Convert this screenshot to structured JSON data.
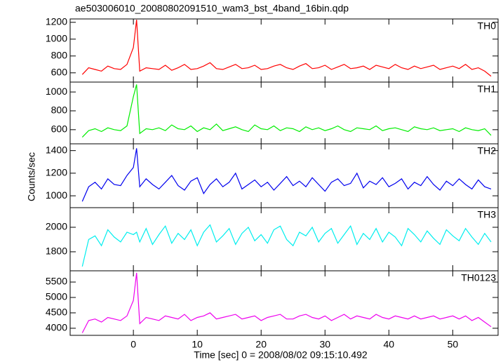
{
  "chart_data": [
    {
      "type": "line",
      "title": "ae503006010_20080802091510_wam3_bst_4band_16bin.qdp",
      "x": [
        -8,
        -7,
        -6,
        -5,
        -4,
        -3,
        -2,
        -1,
        0,
        0.5,
        1,
        2,
        3,
        4,
        5,
        6,
        7,
        8,
        9,
        10,
        11,
        12,
        13,
        14,
        15,
        16,
        17,
        18,
        19,
        20,
        21,
        22,
        23,
        24,
        25,
        26,
        27,
        28,
        29,
        30,
        31,
        32,
        33,
        34,
        35,
        36,
        37,
        38,
        39,
        40,
        41,
        42,
        43,
        44,
        45,
        46,
        47,
        48,
        49,
        50,
        51,
        52,
        53,
        54,
        55,
        56
      ],
      "xlim": [
        -9.9,
        57.1
      ],
      "ylim": [
        490,
        1240
      ],
      "yticks": [
        600,
        800,
        1000,
        1200
      ],
      "series": [
        {
          "name": "TH0",
          "color": "#ff0000",
          "values": [
            580,
            660,
            640,
            620,
            680,
            650,
            640,
            700,
            900,
            1230,
            620,
            660,
            650,
            640,
            690,
            630,
            660,
            700,
            640,
            650,
            680,
            720,
            650,
            640,
            670,
            700,
            650,
            660,
            690,
            640,
            650,
            680,
            700,
            660,
            640,
            680,
            710,
            650,
            660,
            690,
            640,
            670,
            700,
            650,
            660,
            680,
            640,
            690,
            670,
            650,
            700,
            660,
            640,
            680,
            650,
            670,
            690,
            640,
            660,
            680,
            650,
            700,
            640,
            660,
            620,
            560
          ]
        }
      ]
    },
    {
      "type": "line",
      "x": [
        -8,
        -7,
        -6,
        -5,
        -4,
        -3,
        -2,
        -1,
        0,
        0.5,
        1,
        2,
        3,
        4,
        5,
        6,
        7,
        8,
        9,
        10,
        11,
        12,
        13,
        14,
        15,
        16,
        17,
        18,
        19,
        20,
        21,
        22,
        23,
        24,
        25,
        26,
        27,
        28,
        29,
        30,
        31,
        32,
        33,
        34,
        35,
        36,
        37,
        38,
        39,
        40,
        41,
        42,
        43,
        44,
        45,
        46,
        47,
        48,
        49,
        50,
        51,
        52,
        53,
        54,
        55,
        56
      ],
      "xlim": [
        -9.9,
        57.1
      ],
      "ylim": [
        450,
        1105
      ],
      "yticks": [
        600,
        800,
        1000
      ],
      "series": [
        {
          "name": "TH1",
          "color": "#00ee00",
          "values": [
            520,
            590,
            610,
            580,
            620,
            600,
            590,
            640,
            950,
            1080,
            560,
            610,
            600,
            620,
            590,
            650,
            610,
            600,
            640,
            580,
            620,
            600,
            660,
            590,
            610,
            630,
            600,
            580,
            650,
            610,
            600,
            640,
            590,
            620,
            610,
            580,
            630,
            600,
            620,
            590,
            610,
            640,
            600,
            580,
            620,
            610,
            600,
            640,
            590,
            610,
            620,
            600,
            580,
            630,
            610,
            600,
            620,
            590,
            600,
            610,
            580,
            620,
            600,
            590,
            610,
            540
          ]
        }
      ]
    },
    {
      "type": "line",
      "ylabel": "Counts/sec",
      "x": [
        -8,
        -7,
        -6,
        -5,
        -4,
        -3,
        -2,
        -1,
        0,
        0.5,
        1,
        2,
        3,
        4,
        5,
        6,
        7,
        8,
        9,
        10,
        11,
        12,
        13,
        14,
        15,
        16,
        17,
        18,
        19,
        20,
        21,
        22,
        23,
        24,
        25,
        26,
        27,
        28,
        29,
        30,
        31,
        32,
        33,
        34,
        35,
        36,
        37,
        38,
        39,
        40,
        41,
        42,
        43,
        44,
        45,
        46,
        47,
        48,
        49,
        50,
        51,
        52,
        53,
        54,
        55,
        56
      ],
      "xlim": [
        -9.9,
        57.1
      ],
      "ylim": [
        895,
        1460
      ],
      "yticks": [
        1000,
        1200,
        1400
      ],
      "series": [
        {
          "name": "TH2",
          "color": "#0000ee",
          "values": [
            950,
            1080,
            1120,
            1060,
            1150,
            1100,
            1090,
            1180,
            1250,
            1420,
            1080,
            1150,
            1100,
            1060,
            1120,
            1180,
            1090,
            1050,
            1130,
            1160,
            1020,
            1100,
            1150,
            1080,
            1120,
            1200,
            1060,
            1100,
            1140,
            1080,
            1120,
            1050,
            1110,
            1170,
            1090,
            1130,
            1080,
            1160,
            1100,
            1040,
            1120,
            1150,
            1090,
            1110,
            1200,
            1070,
            1130,
            1100,
            1160,
            1080,
            1110,
            1150,
            1060,
            1120,
            1090,
            1170,
            1100,
            1050,
            1130,
            1090,
            1150,
            1100,
            1060,
            1140,
            1080,
            1060
          ]
        }
      ]
    },
    {
      "type": "line",
      "x": [
        -8,
        -7,
        -6,
        -5,
        -4,
        -3,
        -2,
        -1,
        0,
        0.5,
        1,
        2,
        3,
        4,
        5,
        6,
        7,
        8,
        9,
        10,
        11,
        12,
        13,
        14,
        15,
        16,
        17,
        18,
        19,
        20,
        21,
        22,
        23,
        24,
        25,
        26,
        27,
        28,
        29,
        30,
        31,
        32,
        33,
        34,
        35,
        36,
        37,
        38,
        39,
        40,
        41,
        42,
        43,
        44,
        45,
        46,
        47,
        48,
        49,
        50,
        51,
        52,
        53,
        54,
        55,
        56
      ],
      "xlim": [
        -9.9,
        57.1
      ],
      "ylim": [
        1645,
        2160
      ],
      "yticks": [
        1800,
        2000
      ],
      "series": [
        {
          "name": "TH3",
          "color": "#00eeee",
          "values": [
            1680,
            1900,
            1930,
            1850,
            1980,
            1920,
            1880,
            1960,
            1940,
            1960,
            1880,
            1990,
            1860,
            1940,
            2010,
            1870,
            1950,
            1900,
            1980,
            1850,
            1960,
            2020,
            1880,
            1930,
            1990,
            1860,
            1950,
            2000,
            1890,
            1940,
            1870,
            1980,
            2010,
            1900,
            1850,
            1960,
            1930,
            2000,
            1880,
            1950,
            1990,
            1870,
            1940,
            2010,
            1860,
            1950,
            1900,
            1990,
            1880,
            1960,
            1920,
            1850,
            1990,
            1940,
            1880,
            1970,
            1910,
            1860,
            1980,
            1930,
            1890,
            1990,
            1920,
            1860,
            1950,
            1880
          ]
        }
      ]
    },
    {
      "type": "line",
      "xlabel": "Time [sec] 0 = 2008/08/02 09:15:10.492",
      "x": [
        -8,
        -7,
        -6,
        -5,
        -4,
        -3,
        -2,
        -1,
        0,
        0.5,
        1,
        2,
        3,
        4,
        5,
        6,
        7,
        8,
        9,
        10,
        11,
        12,
        13,
        14,
        15,
        16,
        17,
        18,
        19,
        20,
        21,
        22,
        23,
        24,
        25,
        26,
        27,
        28,
        29,
        30,
        31,
        32,
        33,
        34,
        35,
        36,
        37,
        38,
        39,
        40,
        41,
        42,
        43,
        44,
        45,
        46,
        47,
        48,
        49,
        50,
        51,
        52,
        53,
        54,
        55,
        56
      ],
      "xlim": [
        -9.9,
        57.1
      ],
      "xticks": [
        0,
        10,
        20,
        30,
        40,
        50
      ],
      "ylim": [
        3770,
        5865
      ],
      "yticks": [
        4000,
        4500,
        5000,
        5500
      ],
      "series": [
        {
          "name": "TH0123",
          "color": "#ee00ee",
          "values": [
            3850,
            4250,
            4300,
            4200,
            4350,
            4300,
            4250,
            4400,
            4900,
            5800,
            4150,
            4350,
            4300,
            4250,
            4400,
            4350,
            4300,
            4450,
            4250,
            4350,
            4400,
            4500,
            4300,
            4350,
            4400,
            4450,
            4300,
            4350,
            4400,
            4250,
            4350,
            4400,
            4450,
            4300,
            4300,
            4400,
            4450,
            4350,
            4300,
            4400,
            4250,
            4350,
            4450,
            4300,
            4400,
            4350,
            4300,
            4450,
            4350,
            4300,
            4400,
            4350,
            4300,
            4400,
            4300,
            4350,
            4400,
            4300,
            4350,
            4400,
            4300,
            4400,
            4250,
            4350,
            4200,
            4050
          ]
        }
      ]
    }
  ]
}
